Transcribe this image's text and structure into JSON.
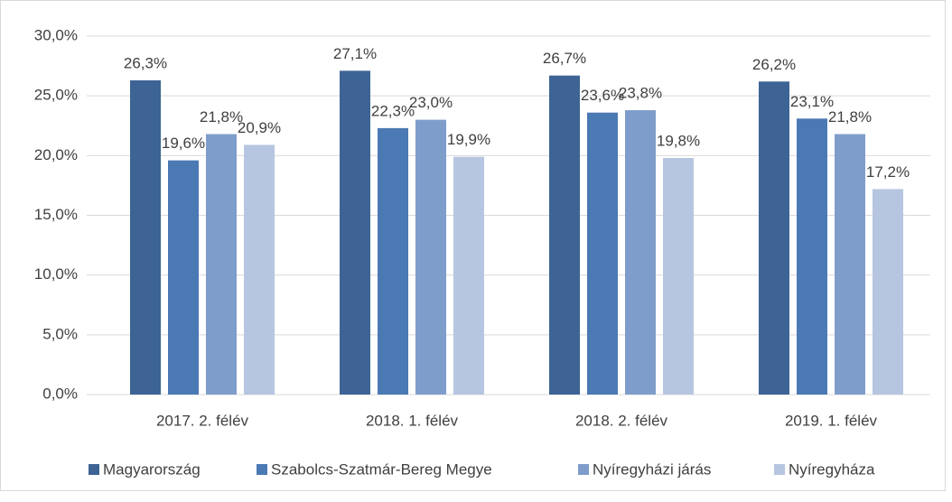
{
  "chart_data": {
    "type": "bar",
    "categories": [
      "2017. 2. félév",
      "2018. 1. félév",
      "2018. 2. félév",
      "2019. 1. félév"
    ],
    "series": [
      {
        "name": "Magyarország",
        "color": "#3d6495",
        "values": [
          26.3,
          27.1,
          26.7,
          26.2
        ],
        "value_labels": [
          "26,3%",
          "27,1%",
          "26,7%",
          "26,2%"
        ]
      },
      {
        "name": "Szabolcs-Szatmár-Bereg Megye",
        "color": "#4b79b4",
        "values": [
          19.6,
          22.3,
          23.6,
          23.1
        ],
        "value_labels": [
          "19,6%",
          "22,3%",
          "23,6%",
          "23,1%"
        ]
      },
      {
        "name": "Nyíregyházi járás",
        "color": "#7f9dcb",
        "values": [
          21.8,
          23.0,
          23.8,
          21.8
        ],
        "value_labels": [
          "21,8%",
          "23,0%",
          "23,8%",
          "21,8%"
        ]
      },
      {
        "name": "Nyíregyháza",
        "color": "#b7c6e0",
        "values": [
          20.9,
          19.9,
          19.8,
          17.2
        ],
        "value_labels": [
          "20,9%",
          "19,9%",
          "19,8%",
          "17,2%"
        ]
      }
    ],
    "ylim": [
      0,
      30
    ],
    "yticks": [
      {
        "value": 0,
        "label": "0,0%"
      },
      {
        "value": 5,
        "label": "5,0%"
      },
      {
        "value": 10,
        "label": "10,0%"
      },
      {
        "value": 15,
        "label": "15,0%"
      },
      {
        "value": 20,
        "label": "20,0%"
      },
      {
        "value": 25,
        "label": "25,0%"
      },
      {
        "value": 30,
        "label": "30,0%"
      }
    ],
    "grid": true,
    "legend": "bottom"
  }
}
